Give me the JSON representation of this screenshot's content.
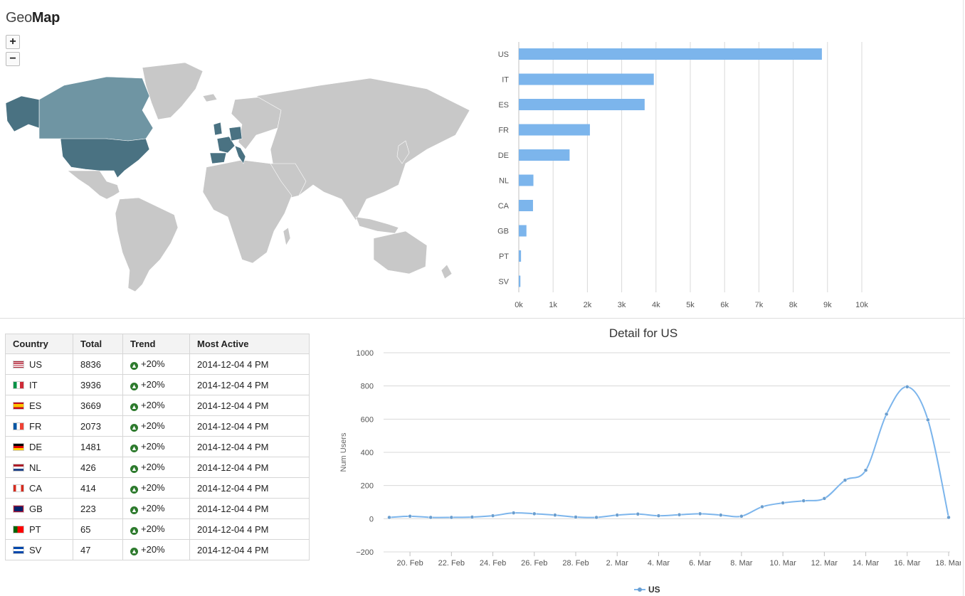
{
  "title": {
    "prefix": "Geo",
    "suffix": "Map"
  },
  "zoom": {
    "in_label": "+",
    "out_label": "−"
  },
  "colors": {
    "bar": "#7cb5ec",
    "line": "#7cb5ec",
    "map_land": "#c8c8c8",
    "map_highlight": "#4f7a8a",
    "trend": "#2d7a2d"
  },
  "bar_chart": {
    "categories": [
      "US",
      "IT",
      "ES",
      "FR",
      "DE",
      "NL",
      "CA",
      "GB",
      "PT",
      "SV"
    ],
    "values": [
      8836,
      3936,
      3669,
      2073,
      1481,
      426,
      414,
      223,
      65,
      47
    ],
    "xticks": [
      "0k",
      "1k",
      "2k",
      "3k",
      "4k",
      "5k",
      "6k",
      "7k",
      "8k",
      "9k",
      "10k"
    ]
  },
  "table": {
    "headers": [
      "Country",
      "Total",
      "Trend",
      "Most Active"
    ],
    "rows": [
      {
        "country": "US",
        "total": "8836",
        "trend": "+20%",
        "most_active": "2014-12-04 4 PM"
      },
      {
        "country": "IT",
        "total": "3936",
        "trend": "+20%",
        "most_active": "2014-12-04 4 PM"
      },
      {
        "country": "ES",
        "total": "3669",
        "trend": "+20%",
        "most_active": "2014-12-04 4 PM"
      },
      {
        "country": "FR",
        "total": "2073",
        "trend": "+20%",
        "most_active": "2014-12-04 4 PM"
      },
      {
        "country": "DE",
        "total": "1481",
        "trend": "+20%",
        "most_active": "2014-12-04 4 PM"
      },
      {
        "country": "NL",
        "total": "426",
        "trend": "+20%",
        "most_active": "2014-12-04 4 PM"
      },
      {
        "country": "CA",
        "total": "414",
        "trend": "+20%",
        "most_active": "2014-12-04 4 PM"
      },
      {
        "country": "GB",
        "total": "223",
        "trend": "+20%",
        "most_active": "2014-12-04 4 PM"
      },
      {
        "country": "PT",
        "total": "65",
        "trend": "+20%",
        "most_active": "2014-12-04 4 PM"
      },
      {
        "country": "SV",
        "total": "47",
        "trend": "+20%",
        "most_active": "2014-12-04 4 PM"
      }
    ]
  },
  "chart_data": [
    {
      "type": "bar",
      "orientation": "horizontal",
      "categories": [
        "US",
        "IT",
        "ES",
        "FR",
        "DE",
        "NL",
        "CA",
        "GB",
        "PT",
        "SV"
      ],
      "values": [
        8836,
        3936,
        3669,
        2073,
        1481,
        426,
        414,
        223,
        65,
        47
      ],
      "xlim": [
        0,
        10000
      ],
      "tick_labels": [
        "0k",
        "1k",
        "2k",
        "3k",
        "4k",
        "5k",
        "6k",
        "7k",
        "8k",
        "9k",
        "10k"
      ],
      "grid": true
    },
    {
      "type": "line",
      "title": "Detail for US",
      "ylabel": "Num Users",
      "ylim": [
        -200,
        1000
      ],
      "yticks": [
        "−200",
        "0",
        "200",
        "400",
        "600",
        "800",
        "1000"
      ],
      "xtick_labels": [
        "20. Feb",
        "22. Feb",
        "24. Feb",
        "26. Feb",
        "28. Feb",
        "2. Mar",
        "4. Mar",
        "6. Mar",
        "8. Mar",
        "10. Mar",
        "12. Mar",
        "14. Mar",
        "16. Mar",
        "18. Mar"
      ],
      "legend": "bottom-center",
      "series": [
        {
          "name": "US",
          "x": [
            "19. Feb",
            "20. Feb",
            "21. Feb",
            "22. Feb",
            "23. Feb",
            "24. Feb",
            "25. Feb",
            "26. Feb",
            "27. Feb",
            "28. Feb",
            "1. Mar",
            "2. Mar",
            "3. Mar",
            "4. Mar",
            "5. Mar",
            "6. Mar",
            "7. Mar",
            "8. Mar",
            "9. Mar",
            "10. Mar",
            "11. Mar",
            "12. Mar",
            "13. Mar",
            "14. Mar",
            "15. Mar",
            "16. Mar",
            "17. Mar",
            "18. Mar"
          ],
          "values": [
            8,
            15,
            8,
            8,
            10,
            18,
            35,
            30,
            22,
            10,
            8,
            22,
            28,
            18,
            24,
            30,
            22,
            15,
            72,
            95,
            108,
            122,
            232,
            292,
            630,
            795,
            596,
            8
          ]
        }
      ]
    }
  ]
}
